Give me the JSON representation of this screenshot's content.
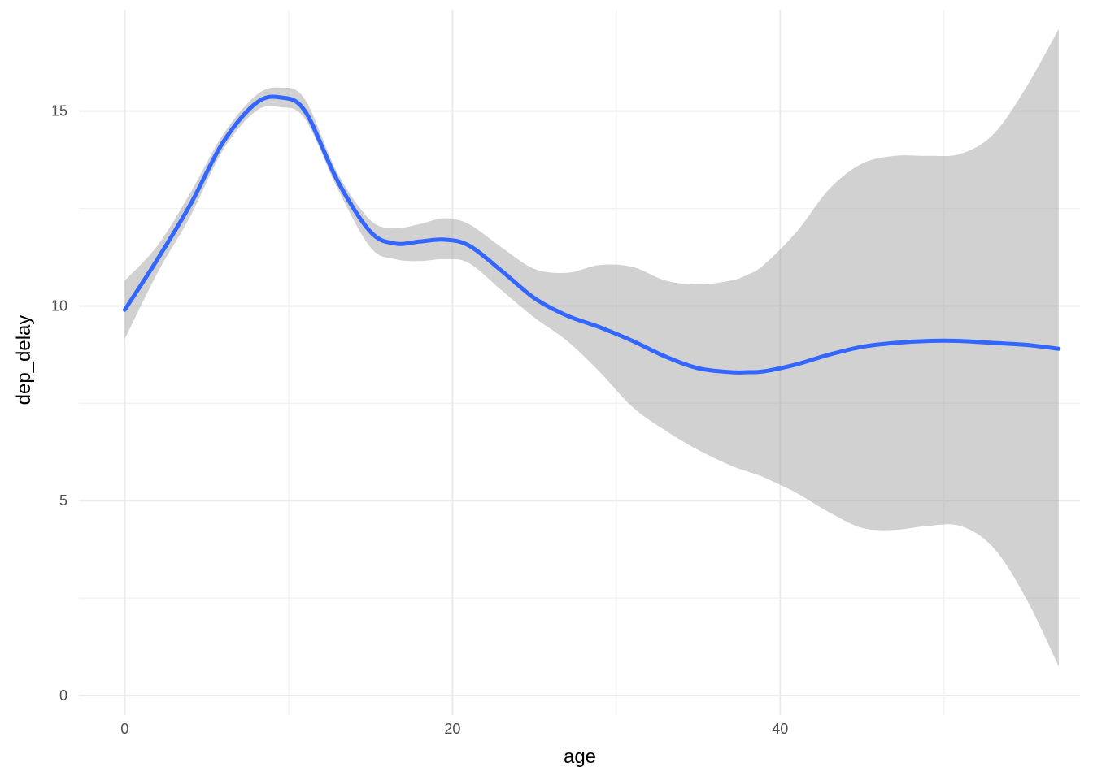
{
  "chart_data": {
    "type": "line",
    "xlabel": "age",
    "ylabel": "dep_delay",
    "xlim": [
      -2.8,
      58.3
    ],
    "ylim": [
      -0.5,
      17.6
    ],
    "x_ticks": [
      0,
      20,
      40
    ],
    "y_ticks": [
      0,
      5,
      10,
      15
    ],
    "x_minor_ticks": [
      10,
      30,
      50
    ],
    "y_minor_ticks": [
      2.5,
      7.5,
      12.5
    ],
    "grid": true,
    "legend": "none",
    "colors": {
      "line": "#3366FF",
      "ribbon": "#999999"
    },
    "series": [
      {
        "x": [
          0,
          2,
          4,
          6,
          8,
          9.5,
          11,
          13,
          15,
          16.5,
          18,
          19.5,
          21,
          23,
          25,
          27,
          29,
          31,
          33,
          35,
          37,
          38,
          39,
          41,
          43,
          45,
          47,
          49,
          51,
          53,
          55,
          57
        ],
        "y": [
          9.9,
          11.2,
          12.6,
          14.2,
          15.2,
          15.35,
          15.0,
          13.2,
          11.9,
          11.6,
          11.65,
          11.7,
          11.55,
          10.9,
          10.2,
          9.75,
          9.45,
          9.1,
          8.7,
          8.4,
          8.3,
          8.3,
          8.32,
          8.5,
          8.75,
          8.95,
          9.05,
          9.1,
          9.1,
          9.05,
          9.0,
          8.9
        ],
        "lower": [
          9.15,
          10.85,
          12.3,
          14.0,
          15.0,
          15.1,
          14.8,
          13.0,
          11.5,
          11.2,
          11.15,
          11.2,
          11.1,
          10.4,
          9.7,
          9.1,
          8.3,
          7.4,
          6.8,
          6.3,
          5.9,
          5.75,
          5.6,
          5.2,
          4.7,
          4.3,
          4.25,
          4.35,
          4.35,
          3.8,
          2.5,
          0.75
        ],
        "upper": [
          10.65,
          11.55,
          12.9,
          14.4,
          15.4,
          15.6,
          15.3,
          13.4,
          12.2,
          12.0,
          12.1,
          12.25,
          12.1,
          11.5,
          10.95,
          10.85,
          11.05,
          11.0,
          10.65,
          10.55,
          10.65,
          10.8,
          11.05,
          11.9,
          13.0,
          13.65,
          13.85,
          13.85,
          13.9,
          14.4,
          15.6,
          17.1
        ]
      }
    ]
  }
}
